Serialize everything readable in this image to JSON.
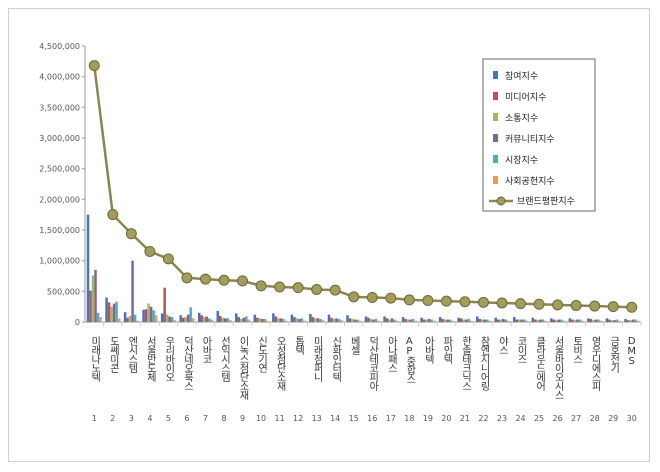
{
  "chart_data": {
    "type": "bar",
    "title": "",
    "xlabel": "",
    "ylabel": "",
    "ylim": [
      0,
      4500000
    ],
    "yticks": [
      "0",
      "500,000",
      "1,000,000",
      "1,500,000",
      "2,000,000",
      "2,500,000",
      "3,000,000",
      "3,500,000",
      "4,000,000",
      "4,500,000"
    ],
    "grid": false,
    "legend_position": "top-right",
    "ranks": [
      "1",
      "2",
      "3",
      "4",
      "5",
      "6",
      "7",
      "8",
      "9",
      "10",
      "11",
      "12",
      "13",
      "14",
      "15",
      "16",
      "17",
      "18",
      "19",
      "20",
      "21",
      "22",
      "23",
      "24",
      "25",
      "26",
      "27",
      "28",
      "29",
      "30"
    ],
    "categories": [
      "미래나노텍",
      "도쎄미콘",
      "엔시스템",
      "서울반도체",
      "우리바이오",
      "덕산네오룩스",
      "아바코",
      "선익시스템",
      "이녹스첨단소재",
      "신도기연",
      "오성첨단소재",
      "톱텍",
      "미래첨퍼니",
      "신화인터텍",
      "베셀",
      "덕산테코피아",
      "아나패스",
      "AP중합스",
      "아바텍",
      "파인텍",
      "한솔테크닉스",
      "참엔지니어링",
      "야스",
      "코이즈",
      "클라우드에어",
      "서울바이오시스",
      "토비스",
      "영우디에스피",
      "금호전기",
      "DMS"
    ],
    "series": [
      {
        "name": "참여지수",
        "color": "#4472c4",
        "values": [
          1750000,
          400000,
          160000,
          200000,
          140000,
          110000,
          150000,
          180000,
          140000,
          120000,
          140000,
          120000,
          130000,
          120000,
          110000,
          90000,
          90000,
          80000,
          70000,
          80000,
          70000,
          90000,
          70000,
          80000,
          70000,
          60000,
          60000,
          60000,
          60000,
          50000
        ]
      },
      {
        "name": "미디어지수",
        "color": "#c0504d",
        "values": [
          510000,
          320000,
          70000,
          210000,
          560000,
          70000,
          110000,
          100000,
          80000,
          70000,
          90000,
          80000,
          80000,
          70000,
          60000,
          70000,
          60000,
          50000,
          40000,
          50000,
          60000,
          50000,
          40000,
          40000,
          40000,
          40000,
          40000,
          50000,
          40000,
          30000
        ]
      },
      {
        "name": "소통지수",
        "color": "#9bbb59",
        "values": [
          760000,
          250000,
          100000,
          300000,
          120000,
          80000,
          80000,
          70000,
          50000,
          60000,
          60000,
          60000,
          60000,
          50000,
          50000,
          50000,
          40000,
          40000,
          40000,
          40000,
          40000,
          40000,
          40000,
          40000,
          30000,
          30000,
          30000,
          30000,
          30000,
          30000
        ]
      },
      {
        "name": "커뮤니티지수",
        "color": "#8064a2",
        "values": [
          850000,
          300000,
          1000000,
          250000,
          90000,
          120000,
          90000,
          60000,
          70000,
          50000,
          60000,
          50000,
          60000,
          60000,
          40000,
          40000,
          60000,
          40000,
          50000,
          40000,
          40000,
          40000,
          50000,
          40000,
          40000,
          40000,
          40000,
          40000,
          30000,
          40000
        ]
      },
      {
        "name": "시장지수",
        "color": "#4bacc6",
        "values": [
          150000,
          330000,
          120000,
          190000,
          80000,
          240000,
          60000,
          60000,
          90000,
          50000,
          50000,
          60000,
          50000,
          50000,
          40000,
          50000,
          40000,
          50000,
          40000,
          40000,
          50000,
          40000,
          40000,
          40000,
          40000,
          40000,
          40000,
          40000,
          40000,
          40000
        ]
      },
      {
        "name": "사회공헌지수",
        "color": "#f79646",
        "values": [
          80000,
          60000,
          20000,
          110000,
          30000,
          60000,
          40000,
          30000,
          40000,
          20000,
          20000,
          20000,
          30000,
          30000,
          20000,
          20000,
          20000,
          20000,
          20000,
          20000,
          20000,
          20000,
          20000,
          20000,
          20000,
          20000,
          20000,
          20000,
          20000,
          20000
        ]
      }
    ],
    "line_series": {
      "name": "브랜드평판지수",
      "color": "#8a8654",
      "values": [
        4180000,
        1750000,
        1440000,
        1150000,
        1030000,
        720000,
        700000,
        680000,
        670000,
        590000,
        570000,
        560000,
        530000,
        520000,
        410000,
        400000,
        390000,
        360000,
        350000,
        340000,
        330000,
        320000,
        310000,
        300000,
        290000,
        280000,
        270000,
        260000,
        250000,
        240000
      ]
    }
  }
}
